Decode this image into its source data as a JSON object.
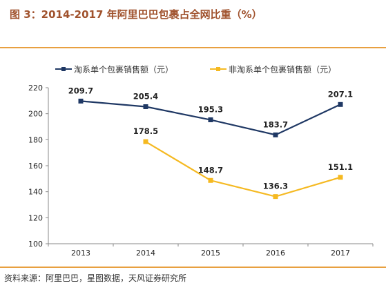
{
  "figure_title": "图 3：2014-2017 年阿里巴巴包裹占全网比重（%）",
  "source_text": "资料来源：阿里巴巴，星图数据，天风证券研究所",
  "chart_data": {
    "type": "line",
    "title": "图 3：2014-2017 年阿里巴巴包裹占全网比重（%）",
    "xlabel": "",
    "ylabel": "",
    "categories": [
      "2013",
      "2014",
      "2015",
      "2016",
      "2017"
    ],
    "ylim": [
      100,
      220
    ],
    "yticks": [
      100,
      120,
      140,
      160,
      180,
      200,
      220
    ],
    "grid": false,
    "legend_position": "top",
    "series": [
      {
        "name": "淘系单个包裹销售额（元）",
        "color": "#1f3864",
        "values": [
          209.7,
          205.4,
          195.3,
          183.7,
          207.1
        ],
        "labels": [
          "209.7",
          "205.4",
          "195.3",
          "183.7",
          "207.1"
        ]
      },
      {
        "name": "非淘系单个包裹销售额（元）",
        "color": "#f5b921",
        "values": [
          null,
          178.5,
          148.7,
          136.3,
          151.1
        ],
        "labels": [
          null,
          "178.5",
          "148.7",
          "136.3",
          "151.1"
        ]
      }
    ]
  }
}
